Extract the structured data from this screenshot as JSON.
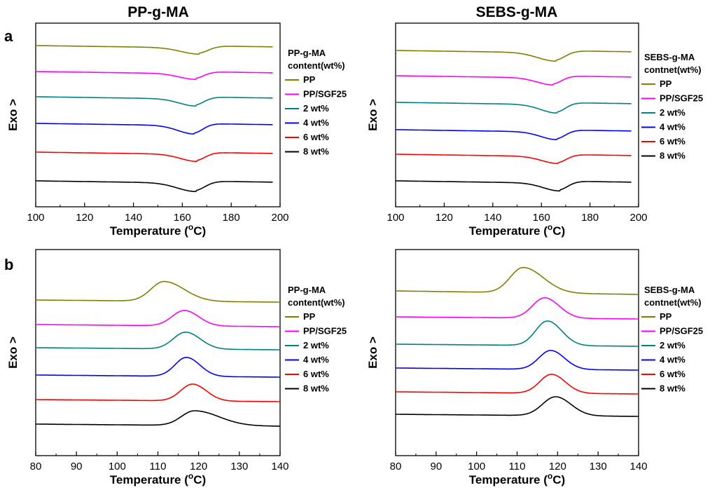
{
  "figure": {
    "column_titles": [
      "PP-g-MA",
      "SEBS-g-MA"
    ],
    "row_labels": [
      "a",
      "b"
    ]
  },
  "chart_data": [
    {
      "type": "line",
      "panel": "a",
      "column": "PP-g-MA",
      "xlabel_main": "Temperature (",
      "xlabel_sup": "o",
      "xlabel_end": "C)",
      "ylabel": "Exo >",
      "xlim": [
        100,
        200
      ],
      "xticks": [
        100,
        120,
        140,
        160,
        180,
        200
      ],
      "legend_title": [
        "PP-g-MA",
        "content(wt%)"
      ],
      "curve_kind": "melting",
      "x_start": 100,
      "x_end": 197,
      "series": [
        {
          "name": "PP",
          "color": "#808000",
          "offset": 0.0,
          "slope": -0.03,
          "peak_x": 167,
          "depth": 9,
          "width": 5
        },
        {
          "name": "PP/SGF25",
          "color": "#ff00ff",
          "offset": 37,
          "slope": -0.02,
          "peak_x": 165.5,
          "depth": 8,
          "width": 4.5
        },
        {
          "name": "2 wt%",
          "color": "#008080",
          "offset": 73,
          "slope": -0.03,
          "peak_x": 165.5,
          "depth": 10,
          "width": 4.5
        },
        {
          "name": "4 wt%",
          "color": "#0000ff",
          "offset": 111,
          "slope": -0.03,
          "peak_x": 165,
          "depth": 12,
          "width": 4.5
        },
        {
          "name": "6 wt%",
          "color": "#ff0000",
          "offset": 152,
          "slope": -0.03,
          "peak_x": 166,
          "depth": 10,
          "width": 4.5
        },
        {
          "name": "8 wt%",
          "color": "#000000",
          "offset": 193,
          "slope": -0.03,
          "peak_x": 165.5,
          "depth": 12,
          "width": 5
        }
      ]
    },
    {
      "type": "line",
      "panel": "a",
      "column": "SEBS-g-MA",
      "xlabel_main": "Temperature (",
      "xlabel_sup": "o",
      "xlabel_end": "C)",
      "ylabel": "Exo >",
      "xlim": [
        100,
        200
      ],
      "xticks": [
        100,
        120,
        140,
        160,
        180,
        200
      ],
      "legend_title": [
        "SEBS-g-MA",
        "contnet(wt%)"
      ],
      "curve_kind": "melting",
      "x_start": 100,
      "x_end": 197,
      "series": [
        {
          "name": "PP",
          "color": "#808000",
          "offset": 0.0,
          "slope": -0.03,
          "peak_x": 166,
          "depth": 12,
          "width": 5
        },
        {
          "name": "PP/SGF25",
          "color": "#ff00ff",
          "offset": 36,
          "slope": -0.02,
          "peak_x": 165,
          "depth": 10,
          "width": 4.5
        },
        {
          "name": "2 wt%",
          "color": "#008080",
          "offset": 74,
          "slope": -0.03,
          "peak_x": 166.5,
          "depth": 12,
          "width": 4.5
        },
        {
          "name": "4 wt%",
          "color": "#0000ff",
          "offset": 113,
          "slope": -0.03,
          "peak_x": 166.5,
          "depth": 11,
          "width": 4.5
        },
        {
          "name": "6 wt%",
          "color": "#ff0000",
          "offset": 148,
          "slope": -0.03,
          "peak_x": 167,
          "depth": 10,
          "width": 4.5
        },
        {
          "name": "8 wt%",
          "color": "#000000",
          "offset": 186,
          "slope": -0.03,
          "peak_x": 167.5,
          "depth": 11,
          "width": 4.5
        }
      ]
    },
    {
      "type": "line",
      "panel": "b",
      "column": "PP-g-MA",
      "xlabel_main": "Temperature (",
      "xlabel_sup": "o",
      "xlabel_end": "C)",
      "ylabel": "Exo >",
      "xlim": [
        80,
        140
      ],
      "xticks": [
        80,
        90,
        100,
        110,
        120,
        130,
        140
      ],
      "legend_title": [
        "PP-g-MA",
        "content(wt%)"
      ],
      "curve_kind": "crystallization",
      "x_start": 80,
      "x_end": 140,
      "series": [
        {
          "name": "PP",
          "color": "#808000",
          "offset": 0.0,
          "drop": 3,
          "peak_x": 111.5,
          "height": 28,
          "width_left": 3.2,
          "width_right": 5.0
        },
        {
          "name": "PP/SGF25",
          "color": "#ff00ff",
          "offset": 35,
          "drop": 3,
          "peak_x": 116.5,
          "height": 22,
          "width_left": 3.0,
          "width_right": 3.5
        },
        {
          "name": "2 wt%",
          "color": "#008080",
          "offset": 68,
          "drop": 3,
          "peak_x": 116.8,
          "height": 24,
          "width_left": 3.0,
          "width_right": 3.6
        },
        {
          "name": "4 wt%",
          "color": "#0000ff",
          "offset": 107,
          "drop": 3,
          "peak_x": 117.0,
          "height": 27,
          "width_left": 2.8,
          "width_right": 3.3
        },
        {
          "name": "6 wt%",
          "color": "#ff0000",
          "offset": 142,
          "drop": 3,
          "peak_x": 118.5,
          "height": 24,
          "width_left": 2.9,
          "width_right": 3.4
        },
        {
          "name": "8 wt%",
          "color": "#000000",
          "offset": 177,
          "drop": 3,
          "peak_x": 119.0,
          "height": 21,
          "width_left": 3.2,
          "width_right": 6.0
        }
      ]
    },
    {
      "type": "line",
      "panel": "b",
      "column": "SEBS-g-MA",
      "xlabel_main": "Temperature (",
      "xlabel_sup": "o",
      "xlabel_end": "C)",
      "ylabel": "Exo >",
      "xlim": [
        80,
        140
      ],
      "xticks": [
        80,
        90,
        100,
        110,
        120,
        130,
        140
      ],
      "legend_title": [
        "SEBS-g-MA",
        "contnet(wt%)"
      ],
      "curve_kind": "crystallization",
      "x_start": 80,
      "x_end": 140,
      "series": [
        {
          "name": "PP",
          "color": "#808000",
          "offset": 0.0,
          "drop": 5,
          "peak_x": 111.5,
          "height": 36,
          "width_left": 3.2,
          "width_right": 5.0
        },
        {
          "name": "PP/SGF25",
          "color": "#ff00ff",
          "offset": 37,
          "drop": 3,
          "peak_x": 116.8,
          "height": 29,
          "width_left": 3.0,
          "width_right": 3.6
        },
        {
          "name": "2 wt%",
          "color": "#008080",
          "offset": 76,
          "drop": 3,
          "peak_x": 117.5,
          "height": 35,
          "width_left": 2.9,
          "width_right": 3.5
        },
        {
          "name": "4 wt%",
          "color": "#0000ff",
          "offset": 110,
          "drop": 3,
          "peak_x": 118.3,
          "height": 27,
          "width_left": 2.9,
          "width_right": 3.4
        },
        {
          "name": "6 wt%",
          "color": "#ff0000",
          "offset": 144,
          "drop": 3,
          "peak_x": 118.5,
          "height": 27,
          "width_left": 2.9,
          "width_right": 3.4
        },
        {
          "name": "8 wt%",
          "color": "#000000",
          "offset": 176,
          "drop": 3,
          "peak_x": 119.5,
          "height": 27,
          "width_left": 3.2,
          "width_right": 3.8
        }
      ]
    }
  ]
}
